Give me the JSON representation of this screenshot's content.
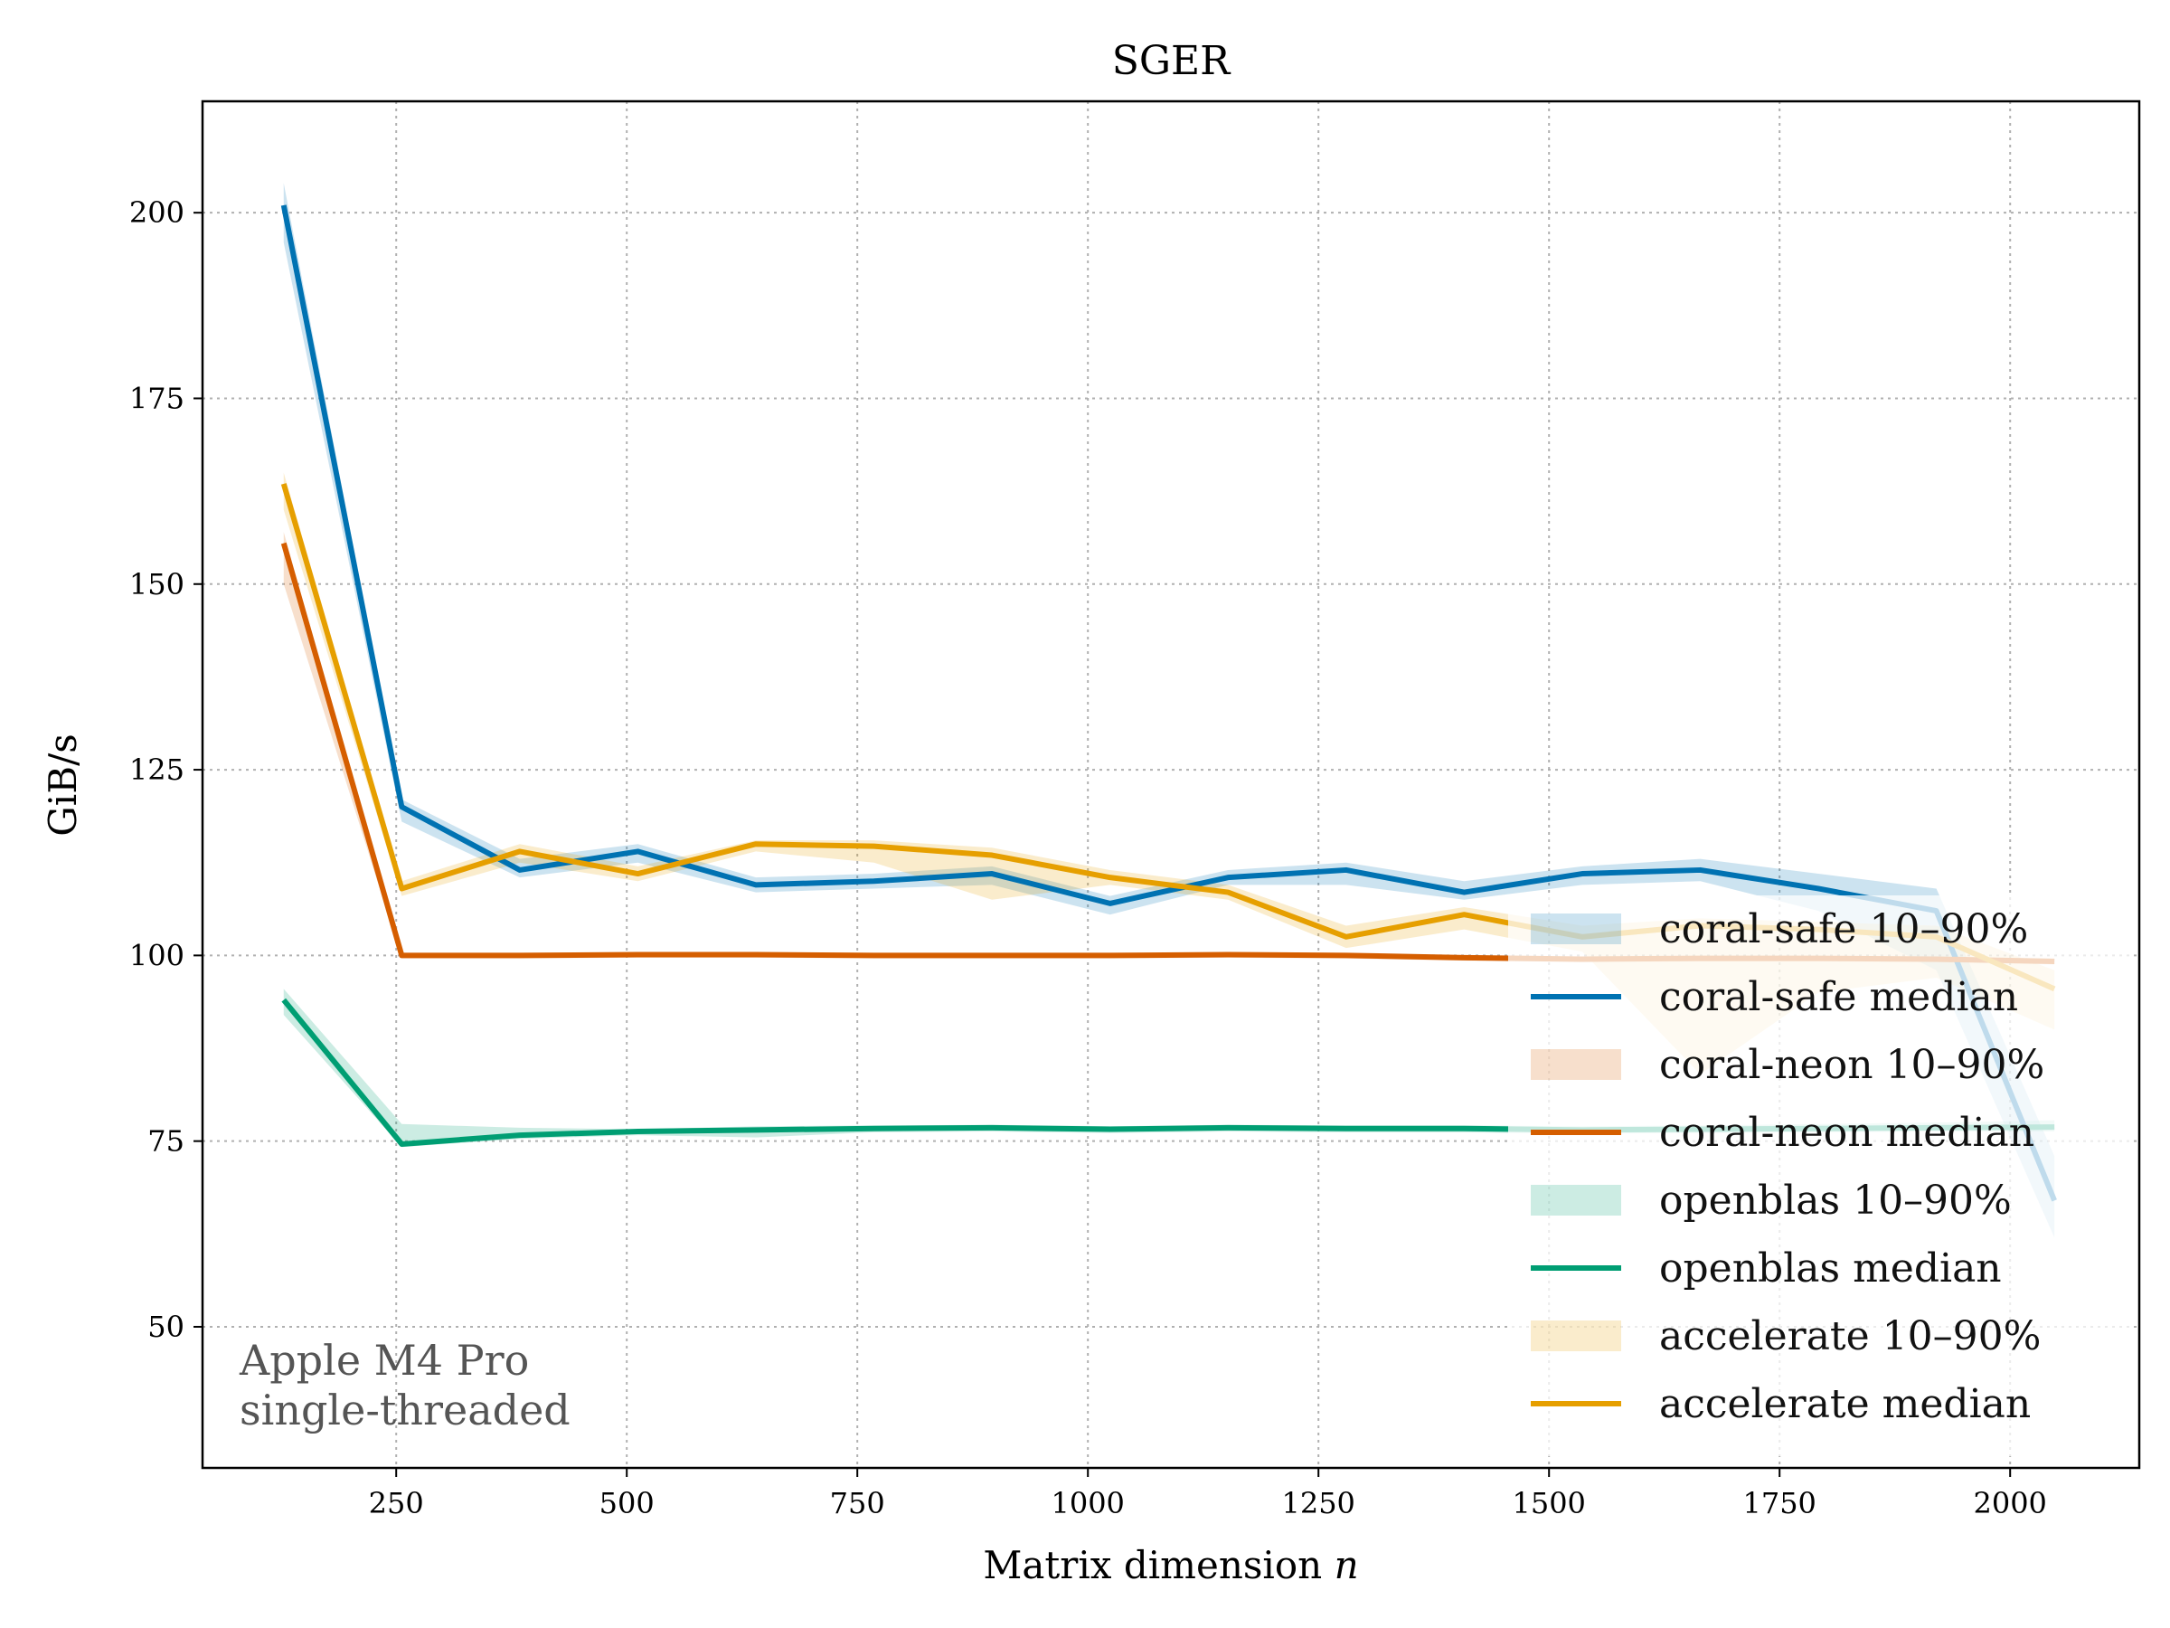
{
  "chart_data": {
    "type": "line",
    "title": "SGER",
    "xlabel": "Matrix dimension",
    "xlabel_var": "n",
    "ylabel": "GiB/s",
    "xlim": [
      40,
      2140
    ],
    "ylim": [
      31,
      215
    ],
    "xticks": [
      250,
      500,
      750,
      1000,
      1250,
      1500,
      1750,
      2000
    ],
    "yticks": [
      50,
      75,
      100,
      125,
      150,
      175,
      200
    ],
    "grid": true,
    "legend_position": "bottom-right",
    "annotation": [
      "Apple M4 Pro",
      "single-threaded"
    ],
    "x": [
      128,
      256,
      384,
      512,
      640,
      768,
      896,
      1024,
      1152,
      1280,
      1408,
      1536,
      1664,
      1792,
      1920,
      2048
    ],
    "series": [
      {
        "name": "coral-safe",
        "color": "#0072b2",
        "median_label": "coral-safe median",
        "band_label": "coral-safe 10–90%",
        "median": [
          201,
          120,
          111.5,
          114,
          109.5,
          110,
          111,
          107,
          110.5,
          111.5,
          108.5,
          111,
          111.5,
          109,
          106,
          67
        ],
        "p10": [
          196,
          118,
          110.5,
          112.5,
          108.5,
          109,
          109.5,
          105.5,
          109.5,
          109.5,
          107.5,
          109.5,
          110,
          106,
          98,
          62
        ],
        "p90": [
          204,
          121,
          113,
          115,
          110.5,
          111,
          112,
          108,
          111.5,
          112.5,
          110,
          112,
          113,
          111,
          109,
          73
        ]
      },
      {
        "name": "coral-neon",
        "color": "#d55e00",
        "median_label": "coral-neon median",
        "band_label": "coral-neon 10–90%",
        "median": [
          155.5,
          100,
          100,
          100.1,
          100.1,
          100,
          100,
          100,
          100.1,
          100,
          99.7,
          99.5,
          99.6,
          99.6,
          99.5,
          99.2
        ],
        "p10": [
          150,
          99.6,
          99.6,
          99.7,
          99.7,
          99.6,
          99.6,
          99.6,
          99.7,
          99.6,
          99.3,
          99.1,
          99.2,
          99.2,
          99.1,
          98.8
        ],
        "p90": [
          157,
          100.3,
          100.3,
          100.4,
          100.4,
          100.3,
          100.3,
          100.3,
          100.4,
          100.3,
          100,
          99.8,
          99.9,
          99.9,
          99.8,
          99.6
        ]
      },
      {
        "name": "openblas",
        "color": "#009e73",
        "median_label": "openblas median",
        "band_label": "openblas 10–90%",
        "median": [
          94,
          74.6,
          75.8,
          76.3,
          76.5,
          76.7,
          76.8,
          76.6,
          76.8,
          76.7,
          76.7,
          76.5,
          76.6,
          76.7,
          76.8,
          76.9
        ],
        "p10": [
          92,
          74.2,
          75.3,
          75.8,
          75.5,
          76.2,
          76.3,
          76.1,
          76.3,
          76.2,
          76.2,
          76,
          76.1,
          76.2,
          76.3,
          76.3
        ],
        "p90": [
          95.5,
          77.3,
          76.8,
          76.6,
          77,
          77.1,
          77.2,
          77,
          77.2,
          77.1,
          77.1,
          77,
          77.1,
          77.3,
          77.5,
          77.8
        ]
      },
      {
        "name": "accelerate",
        "color": "#e69f00",
        "median_label": "accelerate median",
        "band_label": "accelerate 10–90%",
        "median": [
          163.5,
          109,
          114,
          111,
          115,
          114.7,
          113.5,
          110.5,
          108.5,
          102.5,
          105.5,
          102.5,
          104,
          103.5,
          102.5,
          95.5
        ],
        "p10": [
          160,
          108,
          112.5,
          110,
          114,
          112.5,
          107.5,
          109.5,
          107.5,
          101,
          103.5,
          100.5,
          84,
          95,
          97,
          90
        ],
        "p90": [
          165,
          110,
          115,
          112,
          115.5,
          115.5,
          114.5,
          111.5,
          109.5,
          104,
          106.5,
          104,
          105,
          104.5,
          104,
          98
        ]
      }
    ]
  }
}
